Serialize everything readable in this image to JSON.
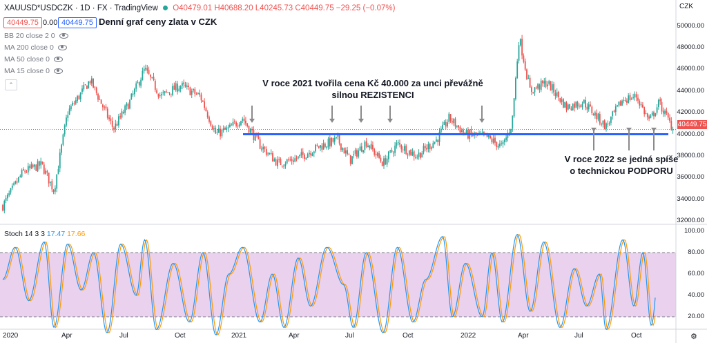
{
  "header": {
    "symbol": "XAUUSD*USDCZK · 1D · FX · TradingView",
    "ohlc": "O40479.01 H40688.20 L40245.73 C40449.75 −29.25 (−0.07%)",
    "bid": "40449.75",
    "spread": "0.00",
    "ask": "40449.75",
    "title": "Denní graf ceny zlata v CZK"
  },
  "indicators": [
    "BB 20 close 2 0",
    "MA 200 close 0",
    "MA 50 close 0",
    "MA 15 close 0"
  ],
  "annotations": {
    "resistance": "V roce 2021 tvořila cena Kč 40.000 za unci převážně silnou REZISTENCI",
    "support": "V roce 2022 se jedná spíše o technickou PODPORU"
  },
  "stoch_legend": {
    "name": "Stoch 14 3 3",
    "k": "17.47",
    "d": "17.66"
  },
  "colors": {
    "up": "#26a69a",
    "down": "#ef5350",
    "level_line": "#2962ff",
    "stoch_k": "#2196f3",
    "stoch_d": "#ff9800",
    "stoch_band": "#e1bee7",
    "arrow": "#8a8a8a"
  },
  "chart_data": [
    {
      "type": "candlestick",
      "title": "Denní graf ceny zlata v CZK",
      "unit": "CZK",
      "ylim": [
        31500,
        51700
      ],
      "y_ticks": [
        "50000.00",
        "48000.00",
        "46000.00",
        "44000.00",
        "42000.00",
        "40000.00",
        "38000.00",
        "36000.00",
        "34000.00",
        "32000.00"
      ],
      "x_ticks": [
        "2020",
        "Apr",
        "Jul",
        "Oct",
        "2021",
        "Apr",
        "Jul",
        "Oct",
        "2022",
        "Apr",
        "Jul",
        "Oct"
      ],
      "current_price": "40449.75",
      "horizontal_level": 40000,
      "close_path": [
        [
          "2020-01-01",
          33400
        ],
        [
          "2020-02-01",
          36500
        ],
        [
          "2020-03-01",
          37200
        ],
        [
          "2020-03-20",
          34800
        ],
        [
          "2020-04-10",
          42000
        ],
        [
          "2020-05-15",
          45000
        ],
        [
          "2020-06-20",
          40500
        ],
        [
          "2020-07-15",
          43000
        ],
        [
          "2020-08-07",
          46000
        ],
        [
          "2020-09-01",
          43500
        ],
        [
          "2020-10-01",
          44500
        ],
        [
          "2020-11-01",
          43500
        ],
        [
          "2020-11-25",
          40000
        ],
        [
          "2020-12-15",
          40500
        ],
        [
          "2021-01-05",
          41500
        ],
        [
          "2021-02-01",
          39000
        ],
        [
          "2021-03-01",
          37300
        ],
        [
          "2021-04-01",
          37800
        ],
        [
          "2021-05-01",
          38800
        ],
        [
          "2021-06-01",
          39500
        ],
        [
          "2021-06-20",
          37600
        ],
        [
          "2021-07-15",
          39300
        ],
        [
          "2021-08-10",
          37300
        ],
        [
          "2021-09-01",
          39100
        ],
        [
          "2021-10-01",
          38000
        ],
        [
          "2021-11-01",
          39500
        ],
        [
          "2021-11-20",
          41500
        ],
        [
          "2021-12-15",
          40000
        ],
        [
          "2022-01-15",
          39800
        ],
        [
          "2022-02-10",
          38800
        ],
        [
          "2022-02-25",
          41000
        ],
        [
          "2022-03-08",
          49000
        ],
        [
          "2022-03-25",
          44000
        ],
        [
          "2022-04-20",
          44800
        ],
        [
          "2022-05-20",
          42500
        ],
        [
          "2022-06-15",
          43000
        ],
        [
          "2022-07-20",
          40700
        ],
        [
          "2022-08-15",
          43200
        ],
        [
          "2022-09-05",
          43500
        ],
        [
          "2022-09-25",
          41200
        ],
        [
          "2022-10-10",
          42900
        ],
        [
          "2022-11-01",
          40450
        ]
      ]
    },
    {
      "type": "line",
      "title": "Stoch 14 3 3",
      "ylim": [
        0,
        100
      ],
      "y_ticks": [
        "100.00",
        "80.00",
        "60.00",
        "40.00",
        "20.00"
      ],
      "band": [
        20,
        80
      ],
      "series": [
        {
          "name": "%K",
          "last": 17.47
        },
        {
          "name": "%D",
          "last": 17.66
        }
      ],
      "k_path": [
        [
          "2020-01-01",
          55
        ],
        [
          "2020-01-20",
          85
        ],
        [
          "2020-02-10",
          35
        ],
        [
          "2020-03-05",
          90
        ],
        [
          "2020-03-20",
          10
        ],
        [
          "2020-04-10",
          88
        ],
        [
          "2020-05-01",
          45
        ],
        [
          "2020-05-20",
          80
        ],
        [
          "2020-06-10",
          5
        ],
        [
          "2020-07-01",
          88
        ],
        [
          "2020-07-25",
          40
        ],
        [
          "2020-08-07",
          92
        ],
        [
          "2020-08-25",
          8
        ],
        [
          "2020-09-20",
          70
        ],
        [
          "2020-10-15",
          15
        ],
        [
          "2020-11-05",
          80
        ],
        [
          "2020-11-25",
          3
        ],
        [
          "2020-12-15",
          60
        ],
        [
          "2021-01-05",
          85
        ],
        [
          "2021-02-01",
          15
        ],
        [
          "2021-02-20",
          60
        ],
        [
          "2021-03-10",
          10
        ],
        [
          "2021-04-01",
          75
        ],
        [
          "2021-04-20",
          30
        ],
        [
          "2021-05-15",
          85
        ],
        [
          "2021-06-10",
          50
        ],
        [
          "2021-06-25",
          10
        ],
        [
          "2021-07-15",
          80
        ],
        [
          "2021-08-10",
          5
        ],
        [
          "2021-09-01",
          85
        ],
        [
          "2021-09-25",
          15
        ],
        [
          "2021-10-15",
          55
        ],
        [
          "2021-11-10",
          95
        ],
        [
          "2021-11-25",
          20
        ],
        [
          "2021-12-15",
          70
        ],
        [
          "2022-01-10",
          20
        ],
        [
          "2022-01-25",
          80
        ],
        [
          "2022-02-10",
          15
        ],
        [
          "2022-03-05",
          97
        ],
        [
          "2022-03-25",
          25
        ],
        [
          "2022-04-15",
          90
        ],
        [
          "2022-05-10",
          10
        ],
        [
          "2022-06-01",
          65
        ],
        [
          "2022-06-20",
          30
        ],
        [
          "2022-07-10",
          60
        ],
        [
          "2022-07-20",
          8
        ],
        [
          "2022-08-15",
          92
        ],
        [
          "2022-09-01",
          30
        ],
        [
          "2022-09-15",
          80
        ],
        [
          "2022-09-28",
          12
        ],
        [
          "2022-10-12",
          78
        ],
        [
          "2022-10-25",
          15
        ],
        [
          "2022-11-01",
          17.47
        ]
      ]
    }
  ]
}
